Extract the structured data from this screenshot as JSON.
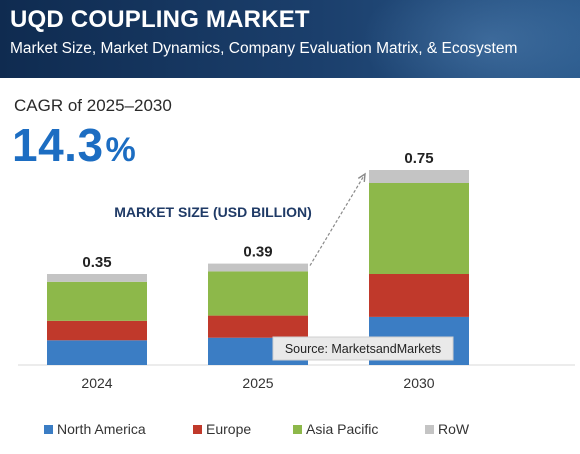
{
  "header": {
    "title": "UQD COUPLING MARKET",
    "subtitle": "Market Size, Market Dynamics, Company Evaluation Matrix, & Ecosystem"
  },
  "cagr": {
    "label": "CAGR of 2025–2030",
    "value": "14.3",
    "unit": "%"
  },
  "chart_data": {
    "type": "bar",
    "stacked": true,
    "title": "MARKET SIZE (USD BILLION)",
    "categories": [
      "2024",
      "2025",
      "2030"
    ],
    "totals": [
      "0.35",
      "0.39",
      "0.75"
    ],
    "series": [
      {
        "name": "North America",
        "color": "#3b7dc4",
        "values": [
          0.095,
          0.105,
          0.185
        ]
      },
      {
        "name": "Europe",
        "color": "#c0392b",
        "values": [
          0.075,
          0.085,
          0.165
        ]
      },
      {
        "name": "Asia Pacific",
        "color": "#8db84a",
        "values": [
          0.15,
          0.17,
          0.35
        ]
      },
      {
        "name": "RoW",
        "color": "#c4c4c4",
        "values": [
          0.03,
          0.03,
          0.05
        ]
      }
    ],
    "ylim": [
      0,
      0.85
    ],
    "source": "Source: MarketsandMarkets",
    "legend_position": "bottom",
    "grid": false
  }
}
